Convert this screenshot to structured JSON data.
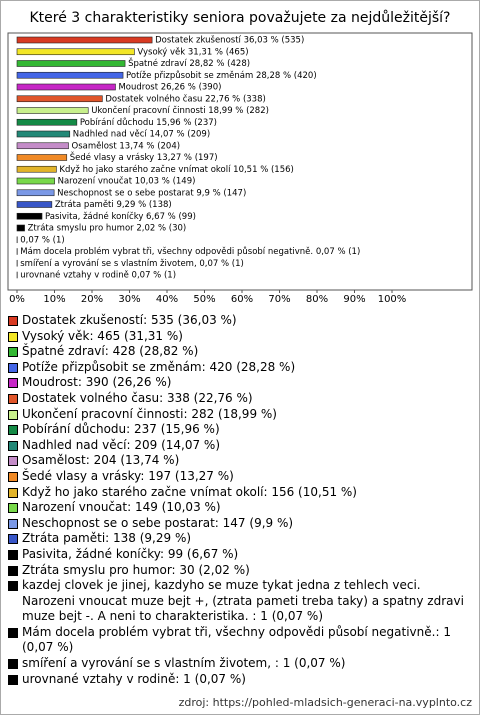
{
  "chart_data": {
    "type": "hbar",
    "title": "Které 3 charakteristiky seniora považujete za nejdůležitější?",
    "values": [
      36.03,
      31.31,
      28.82,
      28.28,
      26.26,
      22.76,
      18.99,
      15.96,
      14.07,
      13.74,
      13.27,
      10.51,
      10.03,
      9.9,
      9.29,
      6.67,
      2.02,
      0.07,
      0.07,
      0.07,
      0.07
    ],
    "value_labels": [
      "Dostatek zkušeností 36,03 % (535)",
      "Vysoký věk 31,31 % (465)",
      "Špatné zdraví 28,82 % (428)",
      "Potíže přizpůsobit se změnám 28,28 % (420)",
      "Moudrost 26,26 % (390)",
      "Dostatek volného času 22,76 % (338)",
      "Ukončení pracovní činnosti 18,99 % (282)",
      "Pobírání důchodu 15,96 % (237)",
      "Nadhled nad věcí 14,07 % (209)",
      "Osamělost 13,74 % (204)",
      "Šedé vlasy a vrásky 13,27 % (197)",
      "Když ho jako starého začne vnímat okolí 10,51 % (156)",
      "Narození vnoučat 10,03 % (149)",
      "Neschopnost se o sebe postarat 9,9 % (147)",
      "Ztráta paměti 9,29 % (138)",
      "Pasivita, žádné koníčky 6,67 % (99)",
      "Ztráta smyslu pro humor 2,02 % (30)",
      "0,07 % (1)",
      "Mám docela problém vybrat tři, všechny odpovědi působí negativně. 0,07 % (1)",
      "smíření a vyrování se s vlastním životem,  0,07 % (1)",
      "urovnané vztahy v rodině 0,07 % (1)"
    ],
    "legend_labels": [
      "Dostatek zkušeností: 535 (36,03 %)",
      "Vysoký věk: 465 (31,31 %)",
      "Špatné zdraví: 428 (28,82 %)",
      "Potíže přizpůsobit se změnám: 420 (28,28 %)",
      "Moudrost: 390 (26,26 %)",
      "Dostatek volného času: 338 (22,76 %)",
      "Ukončení pracovní činnosti: 282 (18,99 %)",
      "Pobírání důchodu: 237 (15,96 %)",
      "Nadhled nad věcí: 209 (14,07 %)",
      "Osamělost: 204 (13,74 %)",
      "Šedé vlasy a vrásky: 197 (13,27 %)",
      "Když ho jako starého začne vnímat okolí: 156 (10,51 %)",
      "Narození vnoučat: 149 (10,03 %)",
      "Neschopnost se o sebe postarat: 147 (9,9 %)",
      "Ztráta paměti: 138 (9,29 %)",
      "Pasivita, žádné koníčky: 99 (6,67 %)",
      "Ztráta smyslu pro humor: 30 (2,02 %)",
      "kazdej clovek je jinej, kazdyho se muze tykat jedna z tehlech veci. Narozeni vnoucat muze bejt +, (ztrata pameti treba taky) a spatny zdravi muze bejt -. A neni to charakteristika. : 1 (0,07 %)",
      "Mám docela problém vybrat tři, všechny odpovědi působí negativně.: 1 (0,07 %)",
      "smíření a vyrování se s vlastním životem, : 1 (0,07 %)",
      "urovnané vztahy v rodině: 1 (0,07 %)"
    ],
    "colors": [
      "#d83a22",
      "#f2e626",
      "#33b833",
      "#4466e6",
      "#c626c6",
      "#e0552a",
      "#c8f08c",
      "#148a46",
      "#228877",
      "#c48cc8",
      "#f08a26",
      "#e2b42a",
      "#78d84a",
      "#7a98e6",
      "#3856c8",
      "#000000",
      "#000000",
      "#000000",
      "#000000",
      "#000000",
      "#000000"
    ],
    "xlim": [
      0,
      120
    ],
    "xticks": [
      {
        "value": 0,
        "label": "0%"
      },
      {
        "value": 10,
        "label": "10%"
      },
      {
        "value": 20,
        "label": "20%"
      },
      {
        "value": 30,
        "label": "30%"
      },
      {
        "value": 40,
        "label": "40%"
      },
      {
        "value": 50,
        "label": "50%"
      },
      {
        "value": 60,
        "label": "60%"
      },
      {
        "value": 70,
        "label": "70%"
      },
      {
        "value": 80,
        "label": "80%"
      },
      {
        "value": 90,
        "label": "90%"
      },
      {
        "value": 100,
        "label": "100%"
      }
    ],
    "source": "zdroj: https://pohled-mladsich-generaci-na.vyplnto.cz"
  }
}
